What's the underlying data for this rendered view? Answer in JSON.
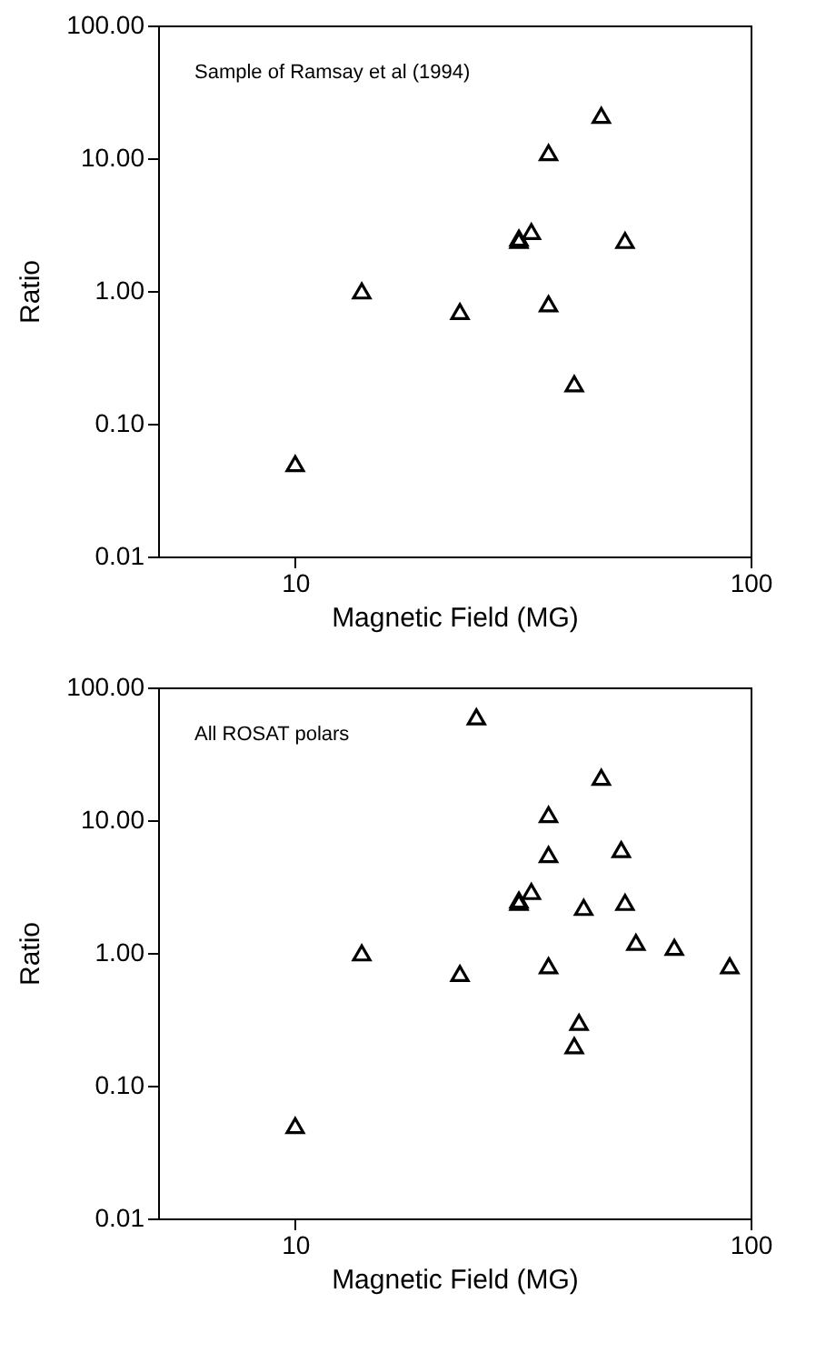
{
  "chart_data": [
    {
      "type": "scatter",
      "xlabel": "Magnetic Field (MG)",
      "ylabel": "Ratio",
      "annotations": [
        "Sample of Ramsay et al (1994)"
      ],
      "log": "xy",
      "marker": "triangle",
      "grid": false,
      "xlim": [
        5,
        100
      ],
      "xticks": [
        10,
        100
      ],
      "ylim": [
        0.01,
        100
      ],
      "yticks": [
        {
          "value": 0.01,
          "label": "0.01"
        },
        {
          "value": 0.1,
          "label": "0.10"
        },
        {
          "value": 1,
          "label": "1.00"
        },
        {
          "value": 10,
          "label": "10.00"
        },
        {
          "value": 100,
          "label": "100.00"
        }
      ],
      "series": [
        {
          "color": "#000000",
          "x": [
            10,
            14,
            23,
            31,
            31,
            33,
            36,
            36,
            41,
            47,
            53
          ],
          "values": [
            0.05,
            1.0,
            0.7,
            2.5,
            2.4,
            2.8,
            11,
            0.8,
            0.2,
            21,
            2.4
          ]
        }
      ]
    },
    {
      "type": "scatter",
      "xlabel": "Magnetic Field (MG)",
      "ylabel": "Ratio",
      "annotations": [
        "All ROSAT polars"
      ],
      "log": "xy",
      "marker": "triangle",
      "grid": false,
      "xlim": [
        5,
        100
      ],
      "xticks": [
        10,
        100
      ],
      "ylim": [
        0.01,
        100
      ],
      "yticks": [
        {
          "value": 0.01,
          "label": "0.01"
        },
        {
          "value": 0.1,
          "label": "0.10"
        },
        {
          "value": 1,
          "label": "1.00"
        },
        {
          "value": 10,
          "label": "10.00"
        },
        {
          "value": 100,
          "label": "100.00"
        }
      ],
      "series": [
        {
          "color": "#000000",
          "x": [
            10,
            14,
            23,
            25,
            31,
            31,
            33,
            36,
            36,
            36,
            41,
            42,
            43,
            47,
            52,
            53,
            56,
            68,
            90
          ],
          "values": [
            0.05,
            1.0,
            0.7,
            60,
            2.5,
            2.4,
            2.9,
            11,
            5.5,
            0.8,
            0.2,
            0.3,
            2.2,
            21,
            6,
            2.4,
            1.2,
            1.1,
            0.8
          ]
        }
      ]
    }
  ]
}
